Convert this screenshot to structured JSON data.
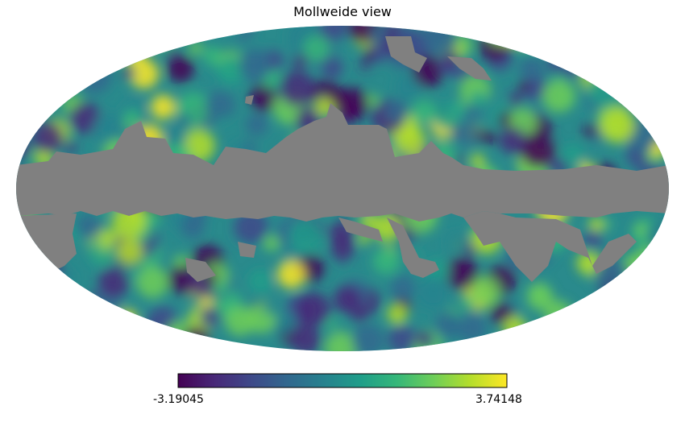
{
  "title": "Mollweide view",
  "colorbar": {
    "min_label": "-3.19045",
    "max_label": "3.74148",
    "min_value": -3.19045,
    "max_value": 3.74148,
    "colormap": [
      "#440154",
      "#482878",
      "#3e4989",
      "#31688e",
      "#26828e",
      "#1f9e89",
      "#35b779",
      "#6ece58",
      "#b5de2b",
      "#fde725"
    ]
  },
  "map": {
    "projection": "Mollweide",
    "mask_color": "#808080",
    "background_color": "#ffffff"
  }
}
